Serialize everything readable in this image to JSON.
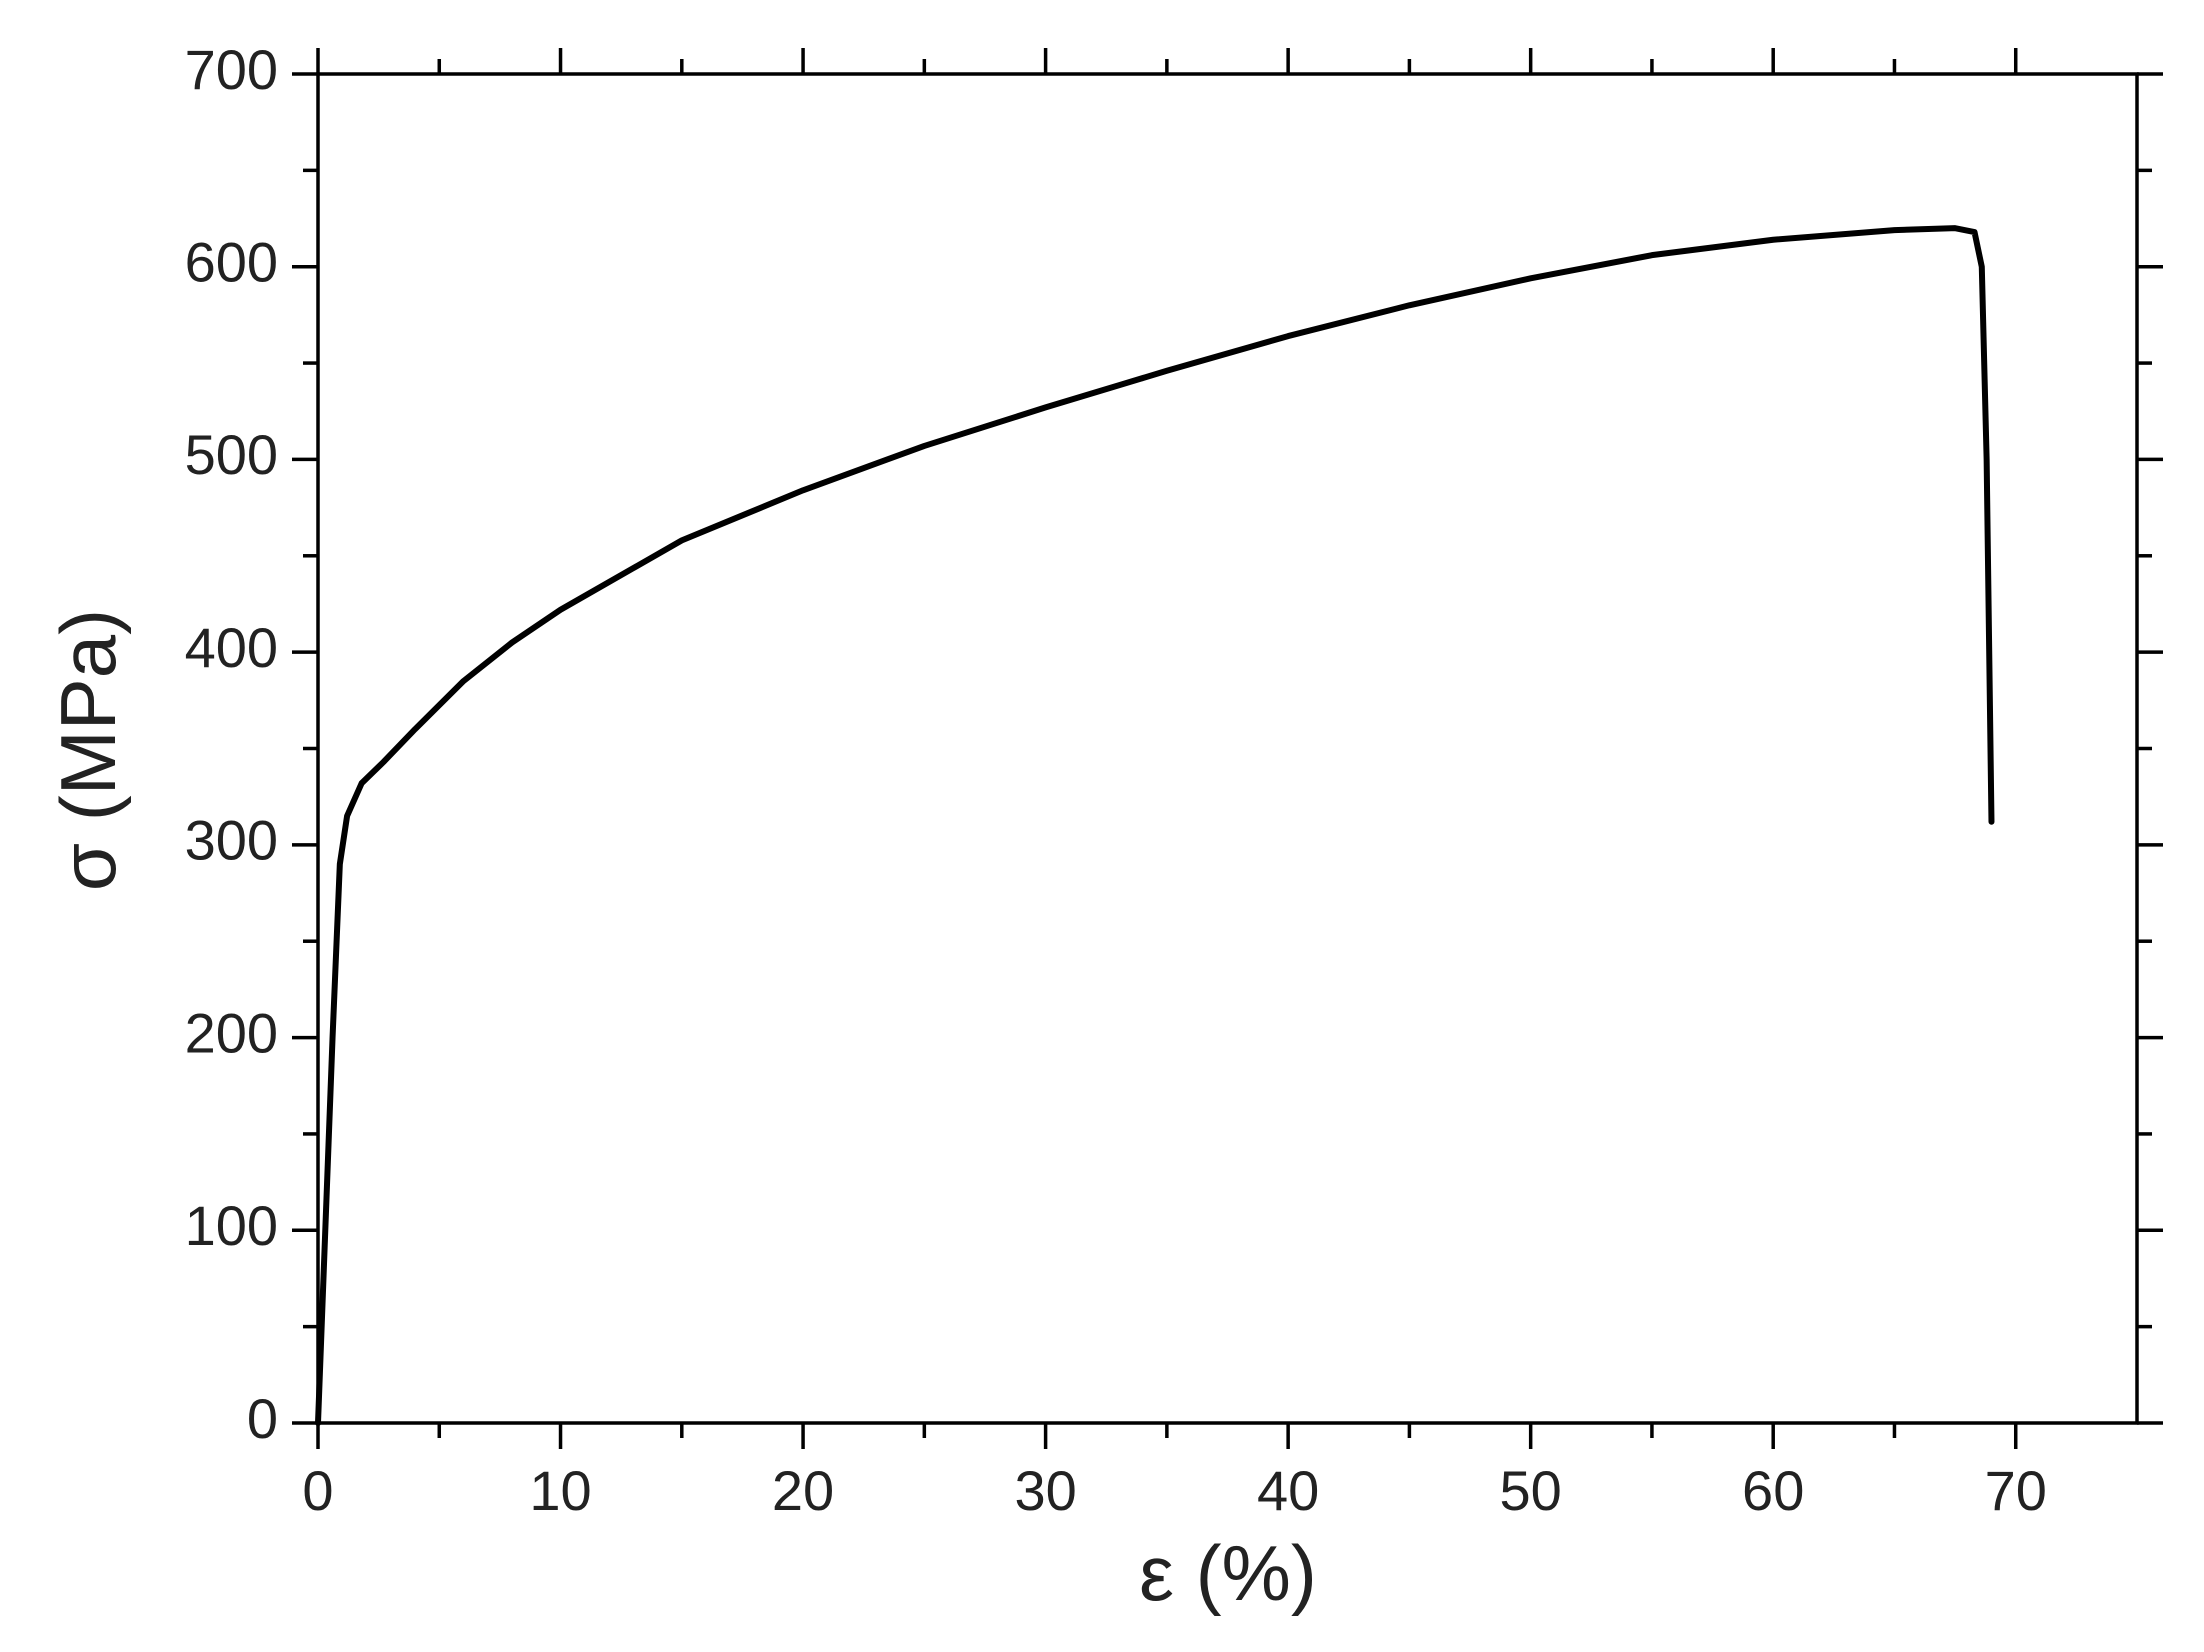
{
  "chart_data": {
    "type": "line",
    "x_label": "ε (%)",
    "y_label": "σ (MPa)",
    "x": [
      0,
      0.3,
      0.6,
      0.9,
      1.2,
      1.8,
      2.7,
      4,
      6,
      8,
      10,
      15,
      20,
      25,
      30,
      35,
      40,
      45,
      50,
      55,
      60,
      65,
      67.5,
      68.3,
      68.6,
      68.8,
      69
    ],
    "values": [
      0,
      100,
      200,
      290,
      315,
      332,
      343,
      360,
      385,
      405,
      422,
      458,
      484,
      507,
      527,
      546,
      564,
      580,
      594,
      606,
      614,
      619,
      620,
      618,
      600,
      500,
      312
    ],
    "color": "#000000",
    "xlim": [
      0,
      75
    ],
    "ylim": [
      0,
      700
    ],
    "xticks": [
      0,
      10,
      20,
      30,
      40,
      50,
      60,
      70
    ],
    "yticks": [
      0,
      100,
      200,
      300,
      400,
      500,
      600,
      700
    ]
  }
}
